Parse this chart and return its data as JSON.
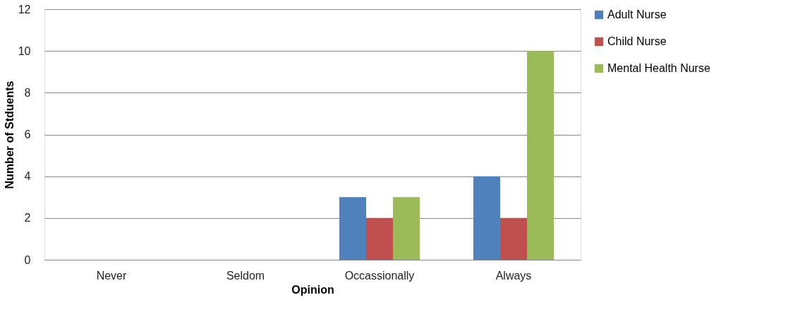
{
  "chart_data": {
    "type": "bar",
    "xlabel": "Opinion",
    "ylabel": "Number of Stduents",
    "categories": [
      "Never",
      "Seldom",
      "Occassionally",
      "Always"
    ],
    "series": [
      {
        "name": "Adult Nurse",
        "color": "#4f81bd",
        "values": [
          0,
          0,
          3,
          4
        ]
      },
      {
        "name": "Child Nurse",
        "color": "#c0504d",
        "values": [
          0,
          0,
          2,
          2
        ]
      },
      {
        "name": "Mental Health Nurse",
        "color": "#9bbb59",
        "values": [
          0,
          0,
          3,
          10
        ]
      }
    ],
    "ylim": [
      0,
      12
    ],
    "yticks": [
      0,
      2,
      4,
      6,
      8,
      10,
      12
    ],
    "grid": "y",
    "legend": "right"
  }
}
